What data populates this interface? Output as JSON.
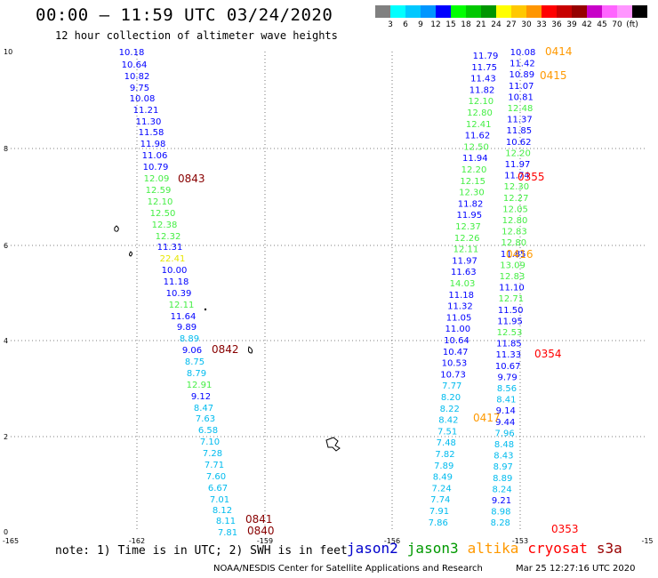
{
  "header": {
    "title": "00:00 – 11:59 UTC 03/24/2020",
    "subtitle": "12 hour collection of altimeter wave heights"
  },
  "legend": {
    "colors": [
      "#808080",
      "#00ffff",
      "#00c8ff",
      "#0096ff",
      "#0000ff",
      "#00ff00",
      "#00c800",
      "#009600",
      "#ffff00",
      "#ffc800",
      "#ff9600",
      "#ff0000",
      "#c80000",
      "#960000",
      "#c800c8",
      "#ff64ff",
      "#ff96ff",
      "#000000"
    ],
    "labels": [
      "3",
      "6",
      "9",
      "12",
      "15",
      "18",
      "21",
      "24",
      "27",
      "30",
      "33",
      "36",
      "39",
      "42",
      "45",
      "70",
      "(ft)"
    ]
  },
  "axes": {
    "x_ticks": [
      "-165",
      "-162",
      "-159",
      "-156",
      "-153",
      "-15"
    ],
    "y_ticks": [
      "10",
      "8",
      "6",
      "4",
      "2",
      "0"
    ]
  },
  "track_left": [
    {
      "t": "10.18",
      "c": "#0000ff"
    },
    {
      "t": "10.64",
      "c": "#0000ff"
    },
    {
      "t": "10.82",
      "c": "#0000ff"
    },
    {
      "t": "9.75",
      "c": "#0000ff"
    },
    {
      "t": "10.08",
      "c": "#0000ff"
    },
    {
      "t": "11.21",
      "c": "#0000ff"
    },
    {
      "t": "11.30",
      "c": "#0000ff"
    },
    {
      "t": "11.58",
      "c": "#0000ff"
    },
    {
      "t": "11.98",
      "c": "#0000ff"
    },
    {
      "t": "11.06",
      "c": "#0000ff"
    },
    {
      "t": "10.79",
      "c": "#0000ff"
    },
    {
      "t": "12.09",
      "c": "#44ee44"
    },
    {
      "t": "12.59",
      "c": "#44ee44"
    },
    {
      "t": "12.10",
      "c": "#44ee44"
    },
    {
      "t": "12.50",
      "c": "#44ee44"
    },
    {
      "t": "12.38",
      "c": "#44ee44"
    },
    {
      "t": "12.32",
      "c": "#44ee44"
    },
    {
      "t": "11.31",
      "c": "#0000ff"
    },
    {
      "t": "22.41",
      "c": "#e6e600"
    },
    {
      "t": "10.00",
      "c": "#0000ff"
    },
    {
      "t": "11.18",
      "c": "#0000ff"
    },
    {
      "t": "10.39",
      "c": "#0000ff"
    },
    {
      "t": "12.11",
      "c": "#44ee44"
    },
    {
      "t": "11.64",
      "c": "#0000ff"
    },
    {
      "t": "9.89",
      "c": "#0000ff"
    },
    {
      "t": "8.89",
      "c": "#00bbee"
    },
    {
      "t": "9.06",
      "c": "#0000ff"
    },
    {
      "t": "8.75",
      "c": "#00bbee"
    },
    {
      "t": "8.79",
      "c": "#00bbee"
    },
    {
      "t": "12.91",
      "c": "#44ee44"
    },
    {
      "t": "9.12",
      "c": "#0000ff"
    },
    {
      "t": "8.47",
      "c": "#00bbee"
    },
    {
      "t": "7.63",
      "c": "#00bbee"
    },
    {
      "t": "6.58",
      "c": "#00bbee"
    },
    {
      "t": "7.10",
      "c": "#00bbee"
    },
    {
      "t": "7.28",
      "c": "#00bbee"
    },
    {
      "t": "7.71",
      "c": "#00bbee"
    },
    {
      "t": "7.60",
      "c": "#00bbee"
    },
    {
      "t": "6.67",
      "c": "#00bbee"
    },
    {
      "t": "7.01",
      "c": "#00bbee"
    },
    {
      "t": "8.12",
      "c": "#00bbee"
    },
    {
      "t": "8.11",
      "c": "#00bbee"
    },
    {
      "t": "7.81",
      "c": "#00bbee"
    }
  ],
  "track_right_a": [
    {
      "t": "11.79",
      "c": "#0000ff"
    },
    {
      "t": "11.75",
      "c": "#0000ff"
    },
    {
      "t": "11.43",
      "c": "#0000ff"
    },
    {
      "t": "11.82",
      "c": "#0000ff"
    },
    {
      "t": "12.10",
      "c": "#44ee44"
    },
    {
      "t": "12.80",
      "c": "#44ee44"
    },
    {
      "t": "12.41",
      "c": "#44ee44"
    },
    {
      "t": "11.62",
      "c": "#0000ff"
    },
    {
      "t": "12.50",
      "c": "#44ee44"
    },
    {
      "t": "11.94",
      "c": "#0000ff"
    },
    {
      "t": "12.20",
      "c": "#44ee44"
    },
    {
      "t": "12.15",
      "c": "#44ee44"
    },
    {
      "t": "12.30",
      "c": "#44ee44"
    },
    {
      "t": "11.82",
      "c": "#0000ff"
    },
    {
      "t": "11.95",
      "c": "#0000ff"
    },
    {
      "t": "12.37",
      "c": "#44ee44"
    },
    {
      "t": "12.26",
      "c": "#44ee44"
    },
    {
      "t": "12.11",
      "c": "#44ee44"
    },
    {
      "t": "11.97",
      "c": "#0000ff"
    },
    {
      "t": "11.63",
      "c": "#0000ff"
    },
    {
      "t": "14.03",
      "c": "#44ee44"
    },
    {
      "t": "11.18",
      "c": "#0000ff"
    },
    {
      "t": "11.32",
      "c": "#0000ff"
    },
    {
      "t": "11.05",
      "c": "#0000ff"
    },
    {
      "t": "11.00",
      "c": "#0000ff"
    },
    {
      "t": "10.64",
      "c": "#0000ff"
    },
    {
      "t": "10.47",
      "c": "#0000ff"
    },
    {
      "t": "10.53",
      "c": "#0000ff"
    },
    {
      "t": "10.73",
      "c": "#0000ff"
    },
    {
      "t": "7.77",
      "c": "#00bbee"
    },
    {
      "t": "8.20",
      "c": "#00bbee"
    },
    {
      "t": "8.22",
      "c": "#00bbee"
    },
    {
      "t": "8.42",
      "c": "#00bbee"
    },
    {
      "t": "7.51",
      "c": "#00bbee"
    },
    {
      "t": "7.48",
      "c": "#00bbee"
    },
    {
      "t": "7.82",
      "c": "#00bbee"
    },
    {
      "t": "7.89",
      "c": "#00bbee"
    },
    {
      "t": "8.49",
      "c": "#00bbee"
    },
    {
      "t": "7.24",
      "c": "#00bbee"
    },
    {
      "t": "7.74",
      "c": "#00bbee"
    },
    {
      "t": "7.91",
      "c": "#00bbee"
    },
    {
      "t": "7.86",
      "c": "#00bbee"
    }
  ],
  "track_right_b": [
    {
      "t": "10.08",
      "c": "#0000ff"
    },
    {
      "t": "11.42",
      "c": "#0000ff"
    },
    {
      "t": "10.89",
      "c": "#0000ff"
    },
    {
      "t": "11.07",
      "c": "#0000ff"
    },
    {
      "t": "10.81",
      "c": "#0000ff"
    },
    {
      "t": "12.48",
      "c": "#44ee44"
    },
    {
      "t": "11.37",
      "c": "#0000ff"
    },
    {
      "t": "11.85",
      "c": "#0000ff"
    },
    {
      "t": "10.62",
      "c": "#0000ff"
    },
    {
      "t": "12.20",
      "c": "#44ee44"
    },
    {
      "t": "11.97",
      "c": "#0000ff"
    },
    {
      "t": "11.74",
      "c": "#0000ff"
    },
    {
      "t": "12.30",
      "c": "#44ee44"
    },
    {
      "t": "12.27",
      "c": "#44ee44"
    },
    {
      "t": "12.05",
      "c": "#44ee44"
    },
    {
      "t": "12.80",
      "c": "#44ee44"
    },
    {
      "t": "12.83",
      "c": "#44ee44"
    },
    {
      "t": "12.80",
      "c": "#44ee44"
    },
    {
      "t": "11.85",
      "c": "#0000ff"
    },
    {
      "t": "13.09",
      "c": "#44ee44"
    },
    {
      "t": "12.83",
      "c": "#44ee44"
    },
    {
      "t": "11.10",
      "c": "#0000ff"
    },
    {
      "t": "12.71",
      "c": "#44ee44"
    },
    {
      "t": "11.50",
      "c": "#0000ff"
    },
    {
      "t": "11.95",
      "c": "#0000ff"
    },
    {
      "t": "12.53",
      "c": "#44ee44"
    },
    {
      "t": "11.85",
      "c": "#0000ff"
    },
    {
      "t": "11.33",
      "c": "#0000ff"
    },
    {
      "t": "10.67",
      "c": "#0000ff"
    },
    {
      "t": "9.79",
      "c": "#0000ff"
    },
    {
      "t": "8.56",
      "c": "#00bbee"
    },
    {
      "t": "8.41",
      "c": "#00bbee"
    },
    {
      "t": "9.14",
      "c": "#0000ff"
    },
    {
      "t": "9.44",
      "c": "#0000ff"
    },
    {
      "t": "7.96",
      "c": "#00bbee"
    },
    {
      "t": "8.48",
      "c": "#00bbee"
    },
    {
      "t": "8.43",
      "c": "#00bbee"
    },
    {
      "t": "8.97",
      "c": "#00bbee"
    },
    {
      "t": "8.89",
      "c": "#00bbee"
    },
    {
      "t": "8.24",
      "c": "#00bbee"
    },
    {
      "t": "9.21",
      "c": "#0000ff"
    },
    {
      "t": "8.98",
      "c": "#00bbee"
    },
    {
      "t": "8.28",
      "c": "#00bbee"
    }
  ],
  "time_labels": [
    {
      "t": "0843",
      "c": "#880000"
    },
    {
      "t": "0842",
      "c": "#880000"
    },
    {
      "t": "0841",
      "c": "#880000"
    },
    {
      "t": "0840",
      "c": "#880000"
    },
    {
      "t": "0414",
      "c": "#ff9900"
    },
    {
      "t": "0415",
      "c": "#ff9900"
    },
    {
      "t": "0355",
      "c": "#ff0000"
    },
    {
      "t": "0416",
      "c": "#ff9900"
    },
    {
      "t": "0354",
      "c": "#ff0000"
    },
    {
      "t": "0417",
      "c": "#ff9900"
    },
    {
      "t": "0353",
      "c": "#ff0000"
    }
  ],
  "notes": {
    "note": "note: 1) Time is in UTC; 2) SWH is in feet",
    "satellites": [
      {
        "name": "jason2",
        "color": "#0000cc"
      },
      {
        "name": "jason3",
        "color": "#009900"
      },
      {
        "name": "altika",
        "color": "#ff9900"
      },
      {
        "name": "cryosat",
        "color": "#ff0000"
      },
      {
        "name": "s3a",
        "color": "#990000"
      }
    ],
    "credit": "NOAA/NESDIS Center for Satellite Applications and Research",
    "timestamp": "Mar 25 12:27:16 UTC 2020"
  }
}
